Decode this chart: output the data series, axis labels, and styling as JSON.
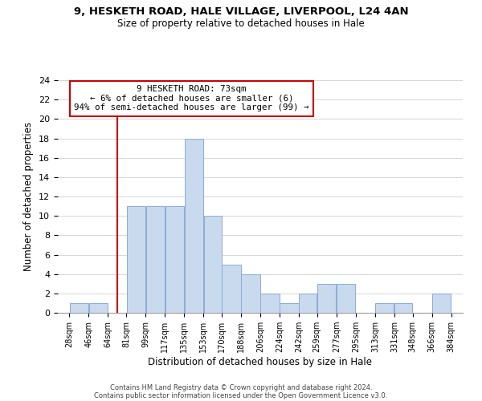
{
  "title1": "9, HESKETH ROAD, HALE VILLAGE, LIVERPOOL, L24 4AN",
  "title2": "Size of property relative to detached houses in Hale",
  "xlabel": "Distribution of detached houses by size in Hale",
  "ylabel": "Number of detached properties",
  "bar_edges": [
    28,
    46,
    64,
    81,
    99,
    117,
    135,
    153,
    170,
    188,
    206,
    224,
    242,
    259,
    277,
    295,
    313,
    331,
    348,
    366,
    384
  ],
  "bar_heights": [
    1,
    1,
    0,
    11,
    11,
    11,
    18,
    10,
    5,
    4,
    2,
    1,
    2,
    3,
    3,
    0,
    1,
    1,
    0,
    2
  ],
  "bar_color": "#c9d9ee",
  "bar_edge_color": "#8aadd4",
  "vline_x": 73,
  "vline_color": "#cc0000",
  "ylim": [
    0,
    24
  ],
  "yticks": [
    0,
    2,
    4,
    6,
    8,
    10,
    12,
    14,
    16,
    18,
    20,
    22,
    24
  ],
  "annotation_title": "9 HESKETH ROAD: 73sqm",
  "annotation_line1": "← 6% of detached houses are smaller (6)",
  "annotation_line2": "94% of semi-detached houses are larger (99) →",
  "annotation_box_color": "#ffffff",
  "annotation_border_color": "#cc0000",
  "tick_labels": [
    "28sqm",
    "46sqm",
    "64sqm",
    "81sqm",
    "99sqm",
    "117sqm",
    "135sqm",
    "153sqm",
    "170sqm",
    "188sqm",
    "206sqm",
    "224sqm",
    "242sqm",
    "259sqm",
    "277sqm",
    "295sqm",
    "313sqm",
    "331sqm",
    "348sqm",
    "366sqm",
    "384sqm"
  ],
  "footer1": "Contains HM Land Registry data © Crown copyright and database right 2024.",
  "footer2": "Contains public sector information licensed under the Open Government Licence v3.0.",
  "bg_color": "#ffffff",
  "grid_color": "#d0d0d0"
}
